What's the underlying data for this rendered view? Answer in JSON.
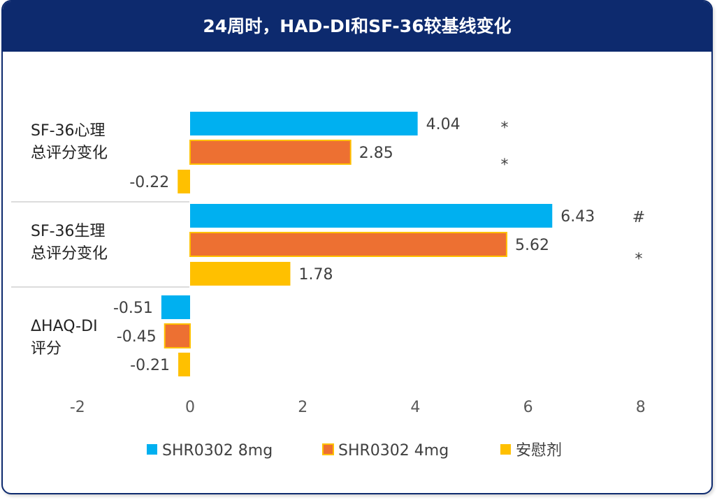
{
  "title": "24周时，HAD-DI和SF-36较基线变化",
  "colors": {
    "header_bg": "#0d2a6e",
    "series": [
      "#00b0f0",
      "#ed7032",
      "#ffc000"
    ],
    "bar_outline": "#ffc000"
  },
  "chart_data": {
    "type": "bar",
    "orientation": "horizontal",
    "categories": [
      {
        "line1": "SF-36心理",
        "line2": "总评分变化"
      },
      {
        "line1": "SF-36生理",
        "line2": "总评分变化"
      },
      {
        "line1": "ΔHAQ-DI",
        "line2": "评分"
      }
    ],
    "series": [
      {
        "name": "SHR0302 8mg",
        "values": [
          4.04,
          6.43,
          -0.51
        ],
        "value_labels": [
          "4.04",
          "6.43",
          "-0.51"
        ]
      },
      {
        "name": "SHR0302 4mg",
        "values": [
          2.85,
          5.62,
          -0.45
        ],
        "value_labels": [
          "2.85",
          "5.62",
          "-0.45"
        ]
      },
      {
        "name": "安慰剂",
        "values": [
          -0.22,
          1.78,
          -0.21
        ],
        "value_labels": [
          "-0.22",
          "1.78",
          "-0.21"
        ]
      }
    ],
    "significance_marks": [
      [
        "*",
        "*",
        "*"
      ],
      [
        "#",
        "*",
        "*"
      ],
      [
        "",
        "",
        ""
      ]
    ],
    "x_ticks": [
      "-2",
      "0",
      "2",
      "4",
      "6",
      "8"
    ],
    "xlim": [
      -2,
      8
    ],
    "grid": false,
    "legend_position": "bottom"
  }
}
